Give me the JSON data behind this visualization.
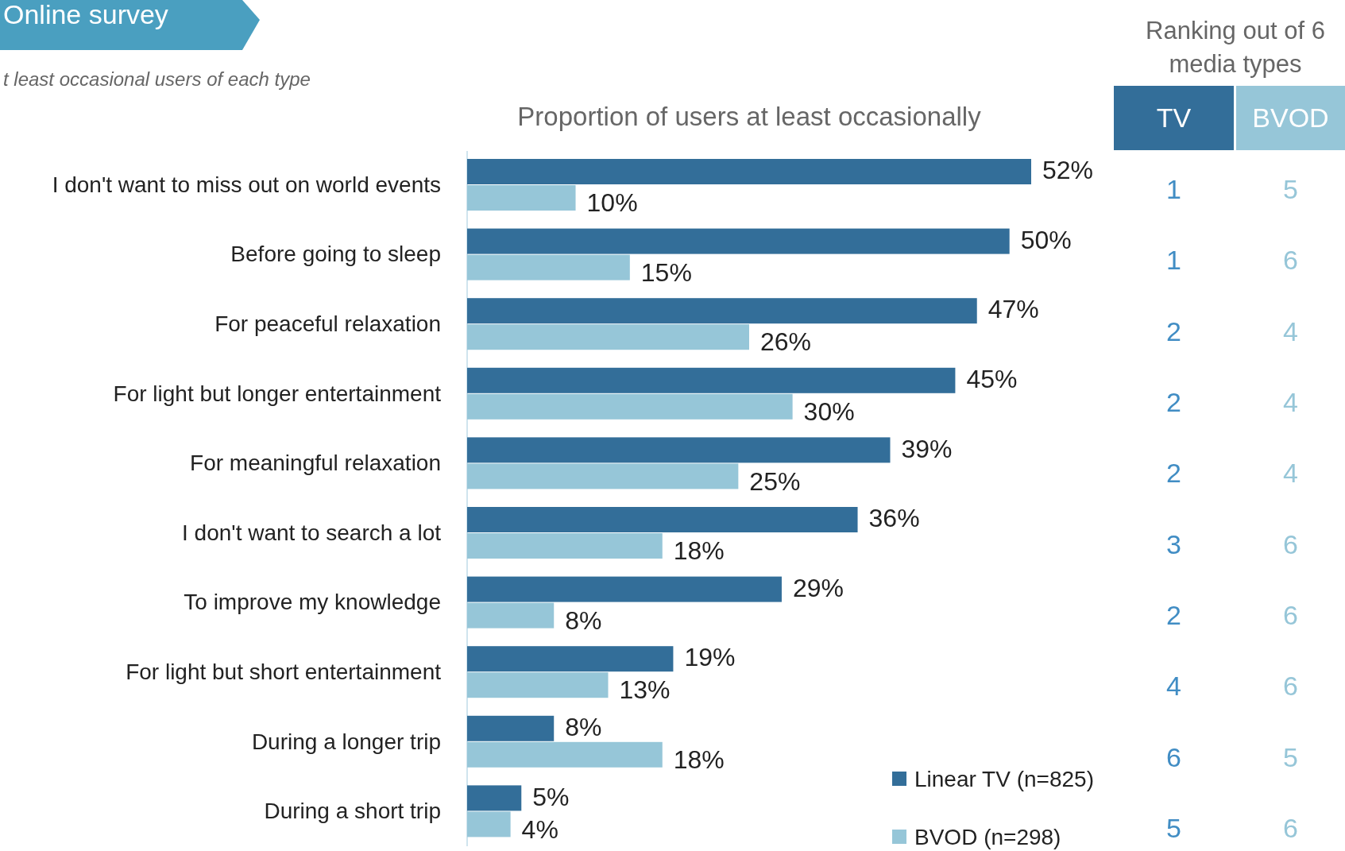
{
  "chart_data": [
    {
      "type": "bar",
      "orientation": "horizontal",
      "title": "Online survey",
      "subtitle": "t least occasional users of each type",
      "xlabel": "Proportion of users at least occasionally",
      "categories": [
        "I don't want to miss out on world events",
        "Before going to sleep",
        "For peaceful relaxation",
        "For light but longer entertainment",
        "For meaningful relaxation",
        "I don't want to search a lot",
        "To improve my knowledge",
        "For light but short entertainment",
        "During a longer trip",
        "During a short trip"
      ],
      "series": [
        {
          "name": "Linear TV (n=825)",
          "color": "#336e99",
          "values": [
            52,
            50,
            47,
            45,
            39,
            36,
            29,
            19,
            8,
            5
          ],
          "value_labels": [
            "52%",
            "50%",
            "47%",
            "45%",
            "39%",
            "36%",
            "29%",
            "19%",
            "8%",
            "5%"
          ]
        },
        {
          "name": "BVOD (n=298)",
          "color": "#96c6d8",
          "values": [
            10,
            15,
            26,
            30,
            25,
            18,
            8,
            13,
            18,
            4
          ],
          "value_labels": [
            "10%",
            "15%",
            "26%",
            "30%",
            "25%",
            "18%",
            "8%",
            "13%",
            "18%",
            "4%"
          ]
        }
      ],
      "xlim": [
        0,
        52
      ],
      "tick_labels": "y",
      "legend": "bottom right"
    },
    {
      "type": "heatmap",
      "title": "Ranking out of 6 media types",
      "categories": [
        "TV",
        "BVOD"
      ],
      "y_categories": [
        null,
        null,
        null,
        null,
        null,
        null,
        null,
        null,
        null,
        null
      ],
      "colors": [
        "#336e99",
        "#96c6d8"
      ],
      "cells": [
        [
          1,
          5
        ],
        [
          1,
          6
        ],
        [
          2,
          4
        ],
        [
          2,
          4
        ],
        [
          2,
          4
        ],
        [
          3,
          6
        ],
        [
          2,
          6
        ],
        [
          4,
          6
        ],
        [
          6,
          5
        ],
        [
          5,
          6
        ]
      ],
      "data_labels": true
    }
  ]
}
